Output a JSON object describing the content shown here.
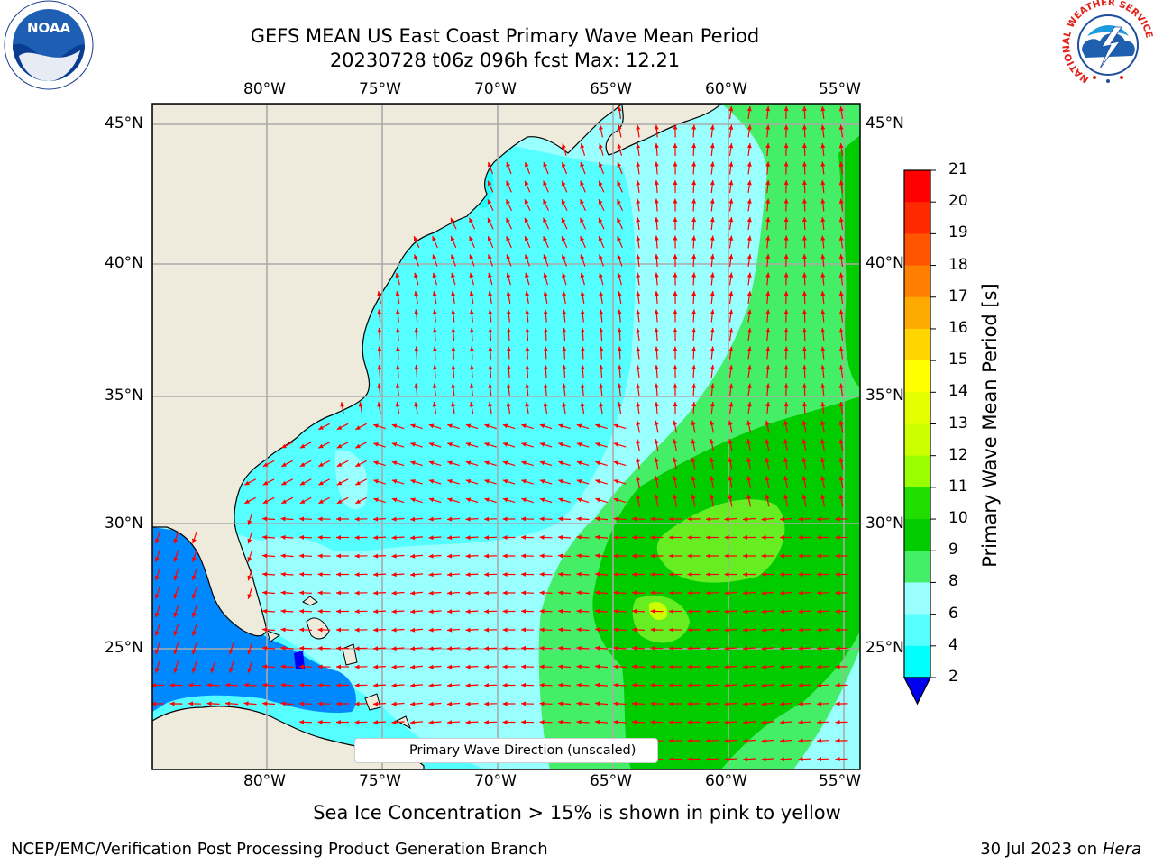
{
  "title": {
    "line1": "GEFS MEAN US East Coast Primary Wave Mean Period",
    "line2": "20230728 t06z 096h fcst   Max: 12.21"
  },
  "map": {
    "lon_labels": [
      "80°W",
      "75°W",
      "70°W",
      "65°W",
      "60°W",
      "55°W"
    ],
    "lat_labels": [
      "45°N",
      "40°N",
      "35°N",
      "30°N",
      "25°N"
    ],
    "legend_label": "Primary Wave Direction (unscaled)",
    "arrow_color": "#ff0000",
    "land_color": "#efebdc"
  },
  "colorbar": {
    "title": "Primary Wave Mean Period [s]",
    "ticks": [
      "21",
      "20",
      "19",
      "18",
      "17",
      "16",
      "15",
      "14",
      "13",
      "12",
      "11",
      "10",
      "9",
      "8",
      "6",
      "4",
      "2"
    ],
    "colors": [
      "#ff0000",
      "#ff2a00",
      "#ff5500",
      "#ff8000",
      "#ffaa00",
      "#ffd400",
      "#ffff00",
      "#e6ff00",
      "#ccff00",
      "#99ff00",
      "#22dd00",
      "#00cc00",
      "#44ee66",
      "#99ffff",
      "#55ffff",
      "#00ffff",
      "#0088ff",
      "#0000ee"
    ]
  },
  "subtitle": "Sea Ice Concentration > 15% is shown in pink to yellow",
  "footer": {
    "left": "NCEP/EMC/Verification Post Processing Product Generation Branch",
    "right_date": "30 Jul 2023 on ",
    "right_machine": "Hera"
  },
  "logos": {
    "noaa": "NOAA",
    "nws_ring": "NATIONAL WEATHER SERVICE"
  }
}
